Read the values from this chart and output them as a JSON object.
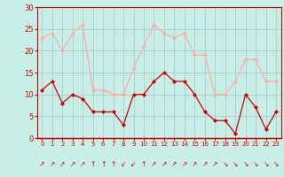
{
  "x": [
    0,
    1,
    2,
    3,
    4,
    5,
    6,
    7,
    8,
    9,
    10,
    11,
    12,
    13,
    14,
    15,
    16,
    17,
    18,
    19,
    20,
    21,
    22,
    23
  ],
  "y_mean": [
    11,
    13,
    8,
    10,
    9,
    6,
    6,
    6,
    3,
    10,
    10,
    13,
    15,
    13,
    13,
    10,
    6,
    4,
    4,
    1,
    10,
    7,
    2,
    6
  ],
  "y_gust": [
    23,
    24,
    20,
    24,
    26,
    11,
    11,
    10,
    10,
    16,
    21,
    26,
    24,
    23,
    24,
    19,
    19,
    10,
    10,
    13,
    18,
    18,
    13,
    13
  ],
  "bg_color": "#c8eee8",
  "grid_color": "#aacccc",
  "line_color_mean": "#cc0000",
  "line_color_gust": "#ffaaaa",
  "xlabel_color": "#cc0000",
  "tick_color": "#cc0000",
  "axis_color": "#cc0000",
  "ylim": [
    0,
    30
  ],
  "yticks": [
    0,
    5,
    10,
    15,
    20,
    25,
    30
  ],
  "xlim": [
    -0.5,
    23.5
  ],
  "arrow_symbols": [
    "↗",
    "↗",
    "↗",
    "↗",
    "↗",
    "↑",
    "↑",
    "↑",
    "↙",
    "↙",
    "↑",
    "↗",
    "↗",
    "↗",
    "↗",
    "↗",
    "↗",
    "↗",
    "↘",
    "↘",
    "↘",
    "↘",
    "↘",
    "↘"
  ]
}
